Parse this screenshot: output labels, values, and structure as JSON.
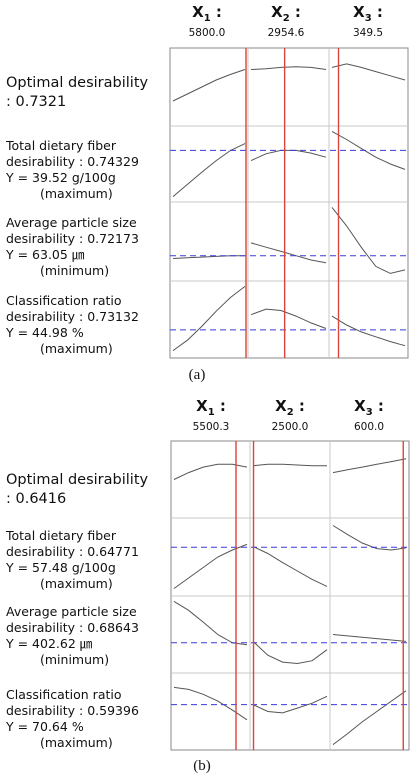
{
  "colors": {
    "frame": "#8a8a8a",
    "grid": "#c8c8c8",
    "optimum_line": "#d9453a",
    "desirability_line": "#3a3ad9",
    "curve": "#555555"
  },
  "panels": [
    {
      "caption": "(a)",
      "factors": [
        {
          "name": "X",
          "sub": "1",
          "suffix": " :",
          "value": "5800.0"
        },
        {
          "name": "X",
          "sub": "2",
          "suffix": " :",
          "value": "2954.6"
        },
        {
          "name": "X",
          "sub": "3",
          "suffix": " :",
          "value": "349.5"
        }
      ],
      "optimal": {
        "line1": "Optimal desirability",
        "line2": ": 0.7321"
      },
      "responses": [
        {
          "line1": "Total dietary fiber",
          "line2": "desirability : 0.74329",
          "line3": "Y = 39.52 g/100g",
          "goal": "(maximum)"
        },
        {
          "line1": "Average particle size",
          "line2": "desirability : 0.72173",
          "line3": "Y = 63.05 ㎛",
          "goal": "(minimum)"
        },
        {
          "line1": "Classification ratio",
          "line2": "desirability : 0.73132",
          "line3": "Y = 44.98 %",
          "goal": "(maximum)"
        }
      ]
    },
    {
      "caption": "(b)",
      "factors": [
        {
          "name": "X",
          "sub": "1",
          "suffix": " :",
          "value": "5500.3"
        },
        {
          "name": "X",
          "sub": "2",
          "suffix": " :",
          "value": "2500.0"
        },
        {
          "name": "X",
          "sub": "3",
          "suffix": " :",
          "value": "600.0"
        }
      ],
      "optimal": {
        "line1": "Optimal desirability",
        "line2": ": 0.6416"
      },
      "responses": [
        {
          "line1": "Total dietary fiber",
          "line2": "desirability : 0.64771",
          "line3": "Y = 57.48 g/100g",
          "goal": "(maximum)"
        },
        {
          "line1": "Average particle size",
          "line2": "desirability : 0.68643",
          "line3": "Y = 402.62 ㎛",
          "goal": "(minimum)"
        },
        {
          "line1": "Classification ratio",
          "line2": "desirability : 0.59396",
          "line3": "Y = 70.64 %",
          "goal": "(maximum)"
        }
      ]
    }
  ],
  "chart_data": [
    {
      "type": "line",
      "title": "",
      "rows": [
        "Optimal desirability",
        "Total dietary fiber",
        "Average particle size",
        "Classification ratio"
      ],
      "columns": [
        "X1",
        "X2",
        "X3"
      ],
      "optimum_settings": [
        5800.0,
        2954.6,
        349.5
      ],
      "optimum_position_fraction": [
        1.0,
        0.45,
        0.1
      ],
      "desirability_reference_fraction": [
        null,
        0.7,
        0.3,
        0.35
      ],
      "curves_fraction": [
        [
          [
            0.3,
            0.4,
            0.5,
            0.6,
            0.68,
            0.75
          ],
          [
            0.75,
            0.76,
            0.78,
            0.79,
            0.78,
            0.75
          ],
          [
            0.78,
            0.83,
            0.78,
            0.72,
            0.66,
            0.6
          ]
        ],
        [
          [
            0.02,
            0.2,
            0.38,
            0.55,
            0.7,
            0.8
          ],
          [
            0.55,
            0.65,
            0.7,
            0.7,
            0.66,
            0.6
          ],
          [
            0.98,
            0.86,
            0.73,
            0.6,
            0.5,
            0.42
          ]
        ],
        [
          [
            0.26,
            0.27,
            0.28,
            0.29,
            0.3,
            0.3
          ],
          [
            0.48,
            0.42,
            0.36,
            0.3,
            0.24,
            0.2
          ],
          [
            0.98,
            0.72,
            0.42,
            0.15,
            0.05,
            0.1
          ]
        ],
        [
          [
            0.05,
            0.2,
            0.4,
            0.62,
            0.82,
            0.98
          ],
          [
            0.57,
            0.65,
            0.63,
            0.55,
            0.45,
            0.37
          ],
          [
            0.55,
            0.42,
            0.32,
            0.25,
            0.18,
            0.12
          ]
        ]
      ]
    },
    {
      "type": "line",
      "title": "",
      "rows": [
        "Optimal desirability",
        "Total dietary fiber",
        "Average particle size",
        "Classification ratio"
      ],
      "columns": [
        "X1",
        "X2",
        "X3"
      ],
      "optimum_settings": [
        5500.3,
        2500.0,
        600.0
      ],
      "optimum_position_fraction": [
        0.84,
        0.02,
        0.95
      ],
      "desirability_reference_fraction": [
        null,
        0.64,
        0.38,
        0.6
      ],
      "curves_fraction": [
        [
          [
            0.5,
            0.6,
            0.68,
            0.72,
            0.72,
            0.68
          ],
          [
            0.7,
            0.72,
            0.72,
            0.71,
            0.7,
            0.7
          ],
          [
            0.6,
            0.64,
            0.68,
            0.72,
            0.76,
            0.8
          ]
        ],
        [
          [
            0.05,
            0.2,
            0.35,
            0.5,
            0.6,
            0.68
          ],
          [
            0.65,
            0.55,
            0.42,
            0.3,
            0.18,
            0.08
          ],
          [
            0.95,
            0.82,
            0.7,
            0.62,
            0.6,
            0.63
          ]
        ],
        [
          [
            0.98,
            0.85,
            0.68,
            0.5,
            0.38,
            0.35
          ],
          [
            0.4,
            0.2,
            0.1,
            0.08,
            0.12,
            0.28
          ],
          [
            0.5,
            0.48,
            0.46,
            0.44,
            0.42,
            0.4
          ]
        ],
        [
          [
            0.85,
            0.82,
            0.75,
            0.65,
            0.52,
            0.38
          ],
          [
            0.6,
            0.5,
            0.48,
            0.55,
            0.62,
            0.72
          ],
          [
            0.02,
            0.18,
            0.35,
            0.5,
            0.65,
            0.8
          ]
        ]
      ]
    }
  ]
}
